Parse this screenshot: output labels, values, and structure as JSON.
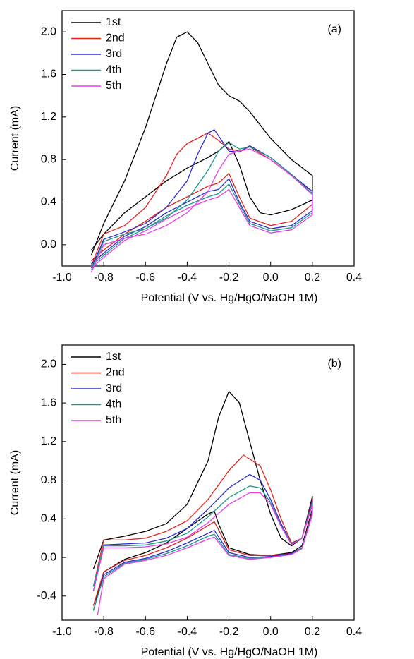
{
  "chart_data": [
    {
      "type": "line",
      "annotation": "(a)",
      "x_label": "Potential (V vs. Hg/HgO/NaOH 1M)",
      "y_label": "Current (mA)",
      "xlim": [
        -1.0,
        0.4
      ],
      "ylim": [
        -0.2,
        2.2
      ],
      "xticks": [
        {
          "value": -1.0,
          "label": "-1.0"
        },
        -0.8,
        -0.6,
        -0.4,
        -0.2,
        {
          "value": 0,
          "label": "0.0"
        },
        0.2,
        0.4
      ],
      "yticks": [
        {
          "value": 0,
          "label": "0.0"
        },
        0.4,
        0.8,
        1.2,
        1.6,
        {
          "value": 2,
          "label": "2.0"
        }
      ],
      "legend": "upper left",
      "series": [
        {
          "name": "1st",
          "color": "#000000",
          "x": [
            -0.86,
            -0.8,
            -0.7,
            -0.6,
            -0.5,
            -0.45,
            -0.4,
            -0.35,
            -0.3,
            -0.25,
            -0.2,
            -0.15,
            -0.1,
            0.0,
            0.1,
            0.2,
            0.2,
            0.1,
            0.0,
            -0.05,
            -0.1,
            -0.15,
            -0.2,
            -0.25,
            -0.3,
            -0.4,
            -0.5,
            -0.6,
            -0.7,
            -0.8,
            -0.86
          ],
          "values": [
            -0.1,
            0.2,
            0.6,
            1.1,
            1.7,
            1.95,
            2.0,
            1.9,
            1.7,
            1.5,
            1.4,
            1.35,
            1.25,
            1.0,
            0.8,
            0.65,
            0.42,
            0.33,
            0.28,
            0.3,
            0.45,
            0.75,
            0.97,
            0.88,
            0.82,
            0.72,
            0.6,
            0.45,
            0.3,
            0.1,
            -0.05
          ]
        },
        {
          "name": "2nd",
          "color": "#e0231c",
          "x": [
            -0.86,
            -0.8,
            -0.7,
            -0.6,
            -0.5,
            -0.45,
            -0.4,
            -0.35,
            -0.3,
            -0.25,
            -0.2,
            -0.15,
            -0.1,
            0.0,
            0.1,
            0.2,
            0.2,
            0.1,
            0.0,
            -0.1,
            -0.15,
            -0.2,
            -0.25,
            -0.3,
            -0.4,
            -0.5,
            -0.6,
            -0.7,
            -0.8,
            -0.86
          ],
          "values": [
            -0.2,
            0.1,
            0.18,
            0.35,
            0.65,
            0.85,
            0.95,
            1.0,
            1.05,
            0.98,
            0.9,
            0.88,
            0.92,
            0.8,
            0.65,
            0.5,
            0.38,
            0.22,
            0.18,
            0.25,
            0.45,
            0.67,
            0.58,
            0.55,
            0.45,
            0.35,
            0.22,
            0.1,
            -0.05,
            -0.15
          ]
        },
        {
          "name": "3rd",
          "color": "#2b2bd0",
          "x": [
            -0.86,
            -0.8,
            -0.7,
            -0.6,
            -0.5,
            -0.4,
            -0.35,
            -0.3,
            -0.27,
            -0.2,
            -0.15,
            -0.1,
            0.0,
            0.1,
            0.2,
            0.2,
            0.1,
            0.0,
            -0.1,
            -0.15,
            -0.2,
            -0.25,
            -0.3,
            -0.4,
            -0.5,
            -0.6,
            -0.7,
            -0.8,
            -0.86
          ],
          "values": [
            -0.22,
            0.05,
            0.12,
            0.2,
            0.35,
            0.6,
            0.85,
            1.05,
            1.08,
            0.88,
            0.87,
            0.93,
            0.82,
            0.66,
            0.5,
            0.32,
            0.18,
            0.15,
            0.22,
            0.4,
            0.62,
            0.52,
            0.5,
            0.4,
            0.3,
            0.17,
            0.08,
            -0.08,
            -0.18
          ]
        },
        {
          "name": "4th",
          "color": "#1a9a8a",
          "x": [
            -0.86,
            -0.8,
            -0.7,
            -0.6,
            -0.5,
            -0.4,
            -0.3,
            -0.25,
            -0.2,
            -0.15,
            -0.1,
            0.0,
            0.1,
            0.2,
            0.2,
            0.1,
            0.0,
            -0.1,
            -0.15,
            -0.2,
            -0.25,
            -0.3,
            -0.4,
            -0.5,
            -0.6,
            -0.7,
            -0.8,
            -0.86
          ],
          "values": [
            -0.24,
            0.03,
            0.1,
            0.15,
            0.25,
            0.42,
            0.7,
            0.88,
            0.96,
            0.9,
            0.92,
            0.82,
            0.66,
            0.48,
            0.3,
            0.16,
            0.13,
            0.2,
            0.38,
            0.57,
            0.48,
            0.45,
            0.37,
            0.27,
            0.15,
            0.06,
            -0.1,
            -0.2
          ]
        },
        {
          "name": "5th",
          "color": "#e83de8",
          "x": [
            -0.86,
            -0.8,
            -0.7,
            -0.6,
            -0.5,
            -0.4,
            -0.3,
            -0.25,
            -0.2,
            -0.15,
            -0.1,
            0.0,
            0.1,
            0.2,
            0.2,
            0.1,
            0.0,
            -0.1,
            -0.15,
            -0.2,
            -0.25,
            -0.3,
            -0.4,
            -0.5,
            -0.6,
            -0.7,
            -0.8,
            -0.86
          ],
          "values": [
            -0.26,
            0.0,
            0.06,
            0.1,
            0.18,
            0.3,
            0.5,
            0.7,
            0.85,
            0.88,
            0.9,
            0.8,
            0.65,
            0.47,
            0.28,
            0.14,
            0.11,
            0.18,
            0.35,
            0.52,
            0.45,
            0.42,
            0.34,
            0.24,
            0.13,
            0.04,
            -0.12,
            -0.22
          ]
        }
      ]
    },
    {
      "type": "line",
      "annotation": "(b)",
      "x_label": "Potential (V vs. Hg/HgO/NaOH 1M)",
      "y_label": "Current (mA)",
      "xlim": [
        -1.0,
        0.4
      ],
      "ylim": [
        -0.65,
        2.2
      ],
      "xticks": [
        {
          "value": -1.0,
          "label": "-1.0"
        },
        -0.8,
        -0.6,
        -0.4,
        -0.2,
        {
          "value": 0,
          "label": "0.0"
        },
        0.2,
        0.4
      ],
      "yticks": [
        -0.4,
        {
          "value": 0,
          "label": "0.0"
        },
        0.4,
        0.8,
        1.2,
        1.6,
        {
          "value": 2,
          "label": "2.0"
        }
      ],
      "legend": "upper left",
      "series": [
        {
          "name": "1st",
          "color": "#000000",
          "x": [
            -0.85,
            -0.8,
            -0.7,
            -0.6,
            -0.5,
            -0.4,
            -0.3,
            -0.25,
            -0.2,
            -0.15,
            -0.1,
            -0.05,
            0.0,
            0.05,
            0.1,
            0.15,
            0.2,
            0.2,
            0.15,
            0.1,
            0.0,
            -0.1,
            -0.2,
            -0.25,
            -0.27,
            -0.3,
            -0.4,
            -0.5,
            -0.6,
            -0.7,
            -0.8,
            -0.84
          ],
          "values": [
            -0.12,
            0.18,
            0.22,
            0.27,
            0.35,
            0.55,
            1.0,
            1.45,
            1.72,
            1.6,
            1.2,
            0.8,
            0.45,
            0.2,
            0.12,
            0.2,
            0.63,
            0.5,
            0.12,
            0.05,
            0.02,
            0.03,
            0.1,
            0.35,
            0.48,
            0.45,
            0.3,
            0.15,
            0.05,
            -0.02,
            -0.15,
            -0.45
          ]
        },
        {
          "name": "2nd",
          "color": "#e0231c",
          "x": [
            -0.85,
            -0.8,
            -0.7,
            -0.6,
            -0.5,
            -0.4,
            -0.3,
            -0.2,
            -0.13,
            -0.05,
            0.0,
            0.05,
            0.1,
            0.15,
            0.2,
            0.2,
            0.15,
            0.1,
            0.0,
            -0.1,
            -0.2,
            -0.27,
            -0.3,
            -0.4,
            -0.5,
            -0.6,
            -0.7,
            -0.8,
            -0.85
          ],
          "values": [
            -0.3,
            0.18,
            0.18,
            0.2,
            0.27,
            0.38,
            0.6,
            0.9,
            1.06,
            0.95,
            0.7,
            0.4,
            0.15,
            0.2,
            0.6,
            0.48,
            0.1,
            0.04,
            0.02,
            0.02,
            0.08,
            0.37,
            0.33,
            0.2,
            0.1,
            0.02,
            -0.03,
            -0.15,
            -0.5
          ]
        },
        {
          "name": "3rd",
          "color": "#2b2bd0",
          "x": [
            -0.85,
            -0.8,
            -0.7,
            -0.6,
            -0.5,
            -0.4,
            -0.3,
            -0.2,
            -0.1,
            -0.05,
            0.0,
            0.05,
            0.1,
            0.15,
            0.2,
            0.2,
            0.15,
            0.1,
            0.0,
            -0.1,
            -0.2,
            -0.27,
            -0.3,
            -0.4,
            -0.5,
            -0.6,
            -0.7,
            -0.8,
            -0.85
          ],
          "values": [
            -0.35,
            0.13,
            0.14,
            0.15,
            0.2,
            0.3,
            0.5,
            0.72,
            0.86,
            0.8,
            0.6,
            0.35,
            0.14,
            0.2,
            0.58,
            0.46,
            0.1,
            0.04,
            0.01,
            0.0,
            0.05,
            0.28,
            0.25,
            0.15,
            0.06,
            -0.01,
            -0.05,
            -0.18,
            -0.55
          ]
        },
        {
          "name": "4th",
          "color": "#1a9a8a",
          "x": [
            -0.85,
            -0.8,
            -0.7,
            -0.6,
            -0.5,
            -0.4,
            -0.3,
            -0.2,
            -0.1,
            -0.05,
            0.0,
            0.05,
            0.1,
            0.15,
            0.2,
            0.2,
            0.15,
            0.1,
            0.0,
            -0.1,
            -0.2,
            -0.27,
            -0.3,
            -0.4,
            -0.5,
            -0.6,
            -0.7,
            -0.8,
            -0.85
          ],
          "values": [
            -0.3,
            0.12,
            0.12,
            0.13,
            0.17,
            0.25,
            0.42,
            0.62,
            0.74,
            0.72,
            0.57,
            0.33,
            0.14,
            0.2,
            0.56,
            0.45,
            0.1,
            0.03,
            0.0,
            -0.01,
            0.03,
            0.24,
            0.22,
            0.12,
            0.04,
            -0.02,
            -0.06,
            -0.2,
            -0.55
          ]
        },
        {
          "name": "5th",
          "color": "#e83de8",
          "x": [
            -0.85,
            -0.8,
            -0.7,
            -0.6,
            -0.5,
            -0.4,
            -0.3,
            -0.2,
            -0.1,
            -0.05,
            0.0,
            0.05,
            0.1,
            0.15,
            0.2,
            0.2,
            0.15,
            0.1,
            0.0,
            -0.1,
            -0.2,
            -0.27,
            -0.3,
            -0.4,
            -0.5,
            -0.6,
            -0.7,
            -0.8,
            -0.83
          ],
          "values": [
            -0.35,
            0.1,
            0.1,
            0.11,
            0.14,
            0.21,
            0.36,
            0.55,
            0.67,
            0.67,
            0.55,
            0.32,
            0.13,
            0.2,
            0.54,
            0.44,
            0.09,
            0.03,
            0.0,
            -0.02,
            0.02,
            0.21,
            0.19,
            0.1,
            0.02,
            -0.03,
            -0.07,
            -0.22,
            -0.6
          ]
        }
      ]
    }
  ]
}
